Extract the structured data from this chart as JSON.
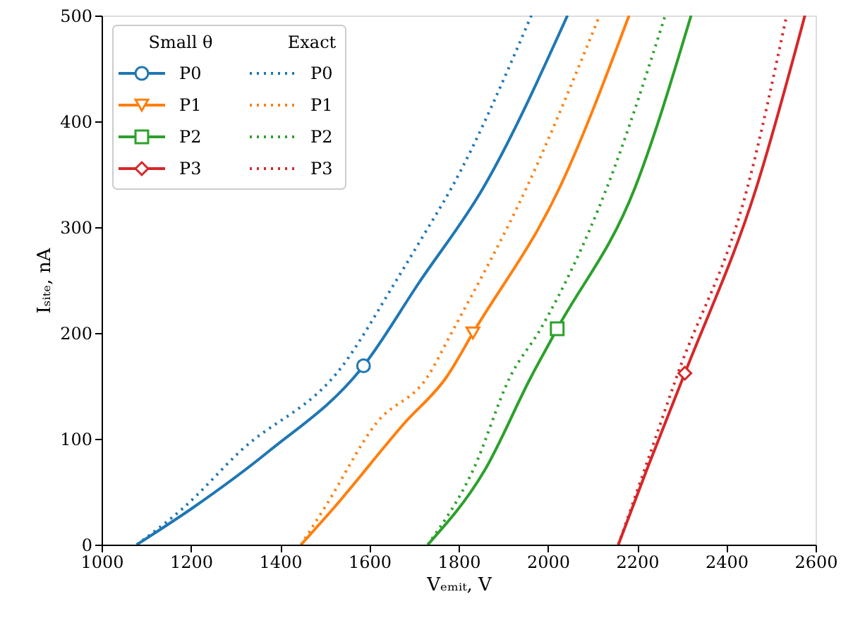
{
  "chart_data": {
    "type": "line",
    "xlabel": "Vₑₘᵢₜ, V",
    "ylabel": "Iₛᵢₜₑ, nA",
    "legend_title": [
      "Small θ",
      "Exact"
    ],
    "legend": "top left",
    "grid": false,
    "xlim": [
      1000,
      2600
    ],
    "xticks": [
      {
        "value": 1000,
        "label": "1000"
      },
      {
        "value": 1200,
        "label": "1200"
      },
      {
        "value": 1400,
        "label": "1400"
      },
      {
        "value": 1600,
        "label": "1600"
      },
      {
        "value": 1800,
        "label": "1800"
      },
      {
        "value": 2000,
        "label": "2000"
      },
      {
        "value": 2200,
        "label": "2200"
      },
      {
        "value": 2400,
        "label": "2400"
      },
      {
        "value": 2600,
        "label": "2600"
      }
    ],
    "ylim": [
      0,
      500
    ],
    "yticks": [
      0,
      100,
      200,
      300,
      400,
      500
    ],
    "series": [
      {
        "name": "P0",
        "color": "#1f77b4",
        "line_style": "solid",
        "x": [
          1079,
          1205,
          1374,
          1587,
          1712,
          1855,
          2044
        ],
        "values": [
          0,
          35,
          88,
          169,
          248,
          337,
          500
        ]
      },
      {
        "name": "P1",
        "color": "#ff7f0e",
        "line_style": "solid",
        "x": [
          1447,
          1521,
          1679,
          1774,
          1832,
          2026,
          2182
        ],
        "values": [
          0,
          35,
          115,
          159,
          200,
          337,
          500
        ]
      },
      {
        "name": "P2",
        "color": "#2ca02c",
        "line_style": "solid",
        "x": [
          1731,
          1858,
          1963,
          2021,
          2195,
          2321
        ],
        "values": [
          0,
          70,
          159,
          204,
          337,
          500
        ]
      },
      {
        "name": "P3",
        "color": "#d62728",
        "line_style": "solid",
        "x": [
          2158,
          2221,
          2307,
          2467,
          2576
        ],
        "values": [
          0,
          70,
          162,
          337,
          500
        ]
      },
      {
        "name": "P0",
        "color": "#1f77b4",
        "line_style": "dotted",
        "x": [
          1079,
          1184,
          1310,
          1540,
          1658,
          1721,
          1784,
          1963
        ],
        "values": [
          0,
          35,
          88,
          169,
          248,
          292,
          337,
          500
        ]
      },
      {
        "name": "P1",
        "color": "#ff7f0e",
        "line_style": "dotted",
        "x": [
          1447,
          1500,
          1616,
          1731,
          1784,
          1952,
          2116
        ],
        "values": [
          0,
          35,
          115,
          159,
          200,
          337,
          500
        ]
      },
      {
        "name": "P2",
        "color": "#2ca02c",
        "line_style": "dotted",
        "x": [
          1731,
          1832,
          1916,
          1984,
          2132,
          2263
        ],
        "values": [
          0,
          70,
          159,
          204,
          337,
          500
        ]
      },
      {
        "name": "P3",
        "color": "#d62728",
        "line_style": "dotted",
        "x": [
          2158,
          2216,
          2289,
          2447,
          2535
        ],
        "values": [
          0,
          70,
          159,
          337,
          500
        ]
      },
      {
        "type": "scatter",
        "color": "#1f77b4",
        "marker": "circle",
        "x": [
          1587
        ],
        "values": [
          169
        ]
      },
      {
        "type": "scatter",
        "color": "#ff7f0e",
        "marker": "triangle-down",
        "x": [
          1832
        ],
        "values": [
          200
        ]
      },
      {
        "type": "scatter",
        "color": "#2ca02c",
        "marker": "square",
        "x": [
          2021
        ],
        "values": [
          204
        ]
      },
      {
        "type": "scatter",
        "color": "#d62728",
        "marker": "diamond",
        "x": [
          2307
        ],
        "values": [
          162
        ]
      }
    ]
  }
}
